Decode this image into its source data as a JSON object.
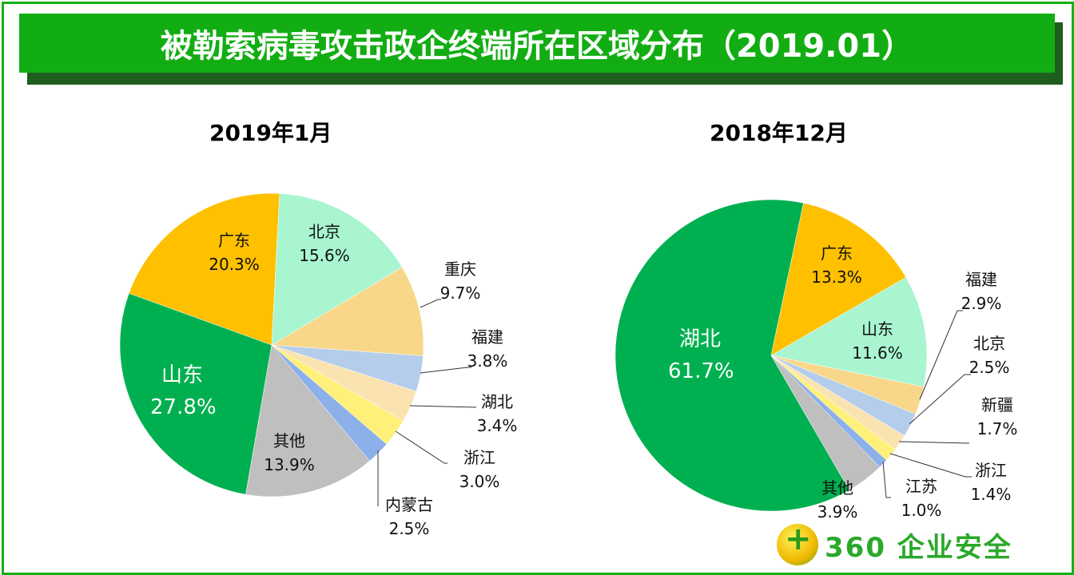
{
  "title": "被勒索病毒攻击政企终端所在区域分布（2019.01）",
  "logo": {
    "text": "360 企业安全"
  },
  "chart_data": [
    {
      "type": "pie",
      "title": "2019年1月",
      "start_deg": 3,
      "slices": [
        {
          "label": "北京",
          "value": 15.6,
          "display": "15.6%",
          "color": "#a8f5d0"
        },
        {
          "label": "重庆",
          "value": 9.7,
          "display": "9.7%",
          "color": "#f8d78a"
        },
        {
          "label": "福建",
          "value": 3.8,
          "display": "3.8%",
          "color": "#b4cdeb"
        },
        {
          "label": "湖北",
          "value": 3.4,
          "display": "3.4%",
          "color": "#fae3b0"
        },
        {
          "label": "浙江",
          "value": 3.0,
          "display": "3.0%",
          "color": "#fff07a"
        },
        {
          "label": "内蒙古",
          "value": 2.5,
          "display": "2.5%",
          "color": "#8cb0ea"
        },
        {
          "label": "其他",
          "value": 13.9,
          "display": "13.9%",
          "color": "#bfbfbf"
        },
        {
          "label": "山东",
          "value": 27.8,
          "display": "27.8%",
          "color": "#00b050"
        },
        {
          "label": "广东",
          "value": 20.3,
          "display": "20.3%",
          "color": "#ffc000"
        }
      ]
    },
    {
      "type": "pie",
      "title": "2018年12月",
      "start_deg": 12,
      "slices": [
        {
          "label": "广东",
          "value": 13.3,
          "display": "13.3%",
          "color": "#ffc000"
        },
        {
          "label": "山东",
          "value": 11.6,
          "display": "11.6%",
          "color": "#a8f5d0"
        },
        {
          "label": "福建",
          "value": 2.9,
          "display": "2.9%",
          "color": "#f8d78a"
        },
        {
          "label": "北京",
          "value": 2.5,
          "display": "2.5%",
          "color": "#b4cdeb"
        },
        {
          "label": "新疆",
          "value": 1.7,
          "display": "1.7%",
          "color": "#fae3b0"
        },
        {
          "label": "浙江",
          "value": 1.4,
          "display": "1.4%",
          "color": "#fff07a"
        },
        {
          "label": "江苏",
          "value": 1.0,
          "display": "1.0%",
          "color": "#8cb0ea"
        },
        {
          "label": "其他",
          "value": 3.9,
          "display": "3.9%",
          "color": "#bfbfbf"
        },
        {
          "label": "湖北",
          "value": 61.7,
          "display": "61.7%",
          "color": "#00b050"
        }
      ]
    }
  ]
}
